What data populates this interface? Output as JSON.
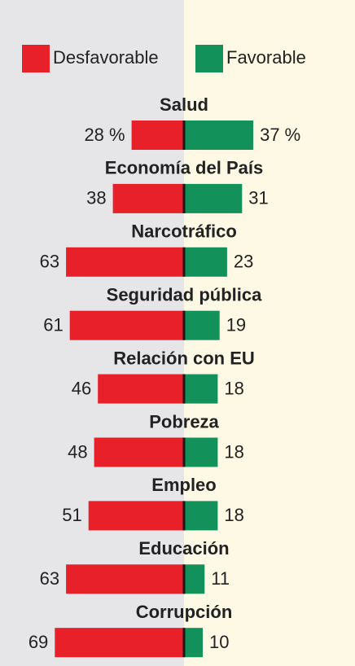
{
  "chart_data": {
    "type": "bar",
    "orientation": "horizontal",
    "layout": "diverging",
    "categories": [
      "Salud",
      "Economía del País",
      "Narcotráfico",
      "Seguridad pública",
      "Relación con EU",
      "Pobreza",
      "Empleo",
      "Educación",
      "Corrupción"
    ],
    "series": [
      {
        "name": "Desfavorable",
        "color": "#e8202a",
        "side": "left",
        "values": [
          28,
          38,
          63,
          61,
          46,
          48,
          51,
          63,
          69
        ],
        "value_labels": [
          "28 %",
          "38",
          "63",
          "61",
          "46",
          "48",
          "51",
          "63",
          "69"
        ]
      },
      {
        "name": "Favorable",
        "color": "#13915a",
        "side": "right",
        "values": [
          37,
          31,
          23,
          19,
          18,
          18,
          18,
          11,
          10
        ],
        "value_labels": [
          "37 %",
          "31",
          "23",
          "19",
          "18",
          "18",
          "18",
          "11",
          "10"
        ]
      }
    ],
    "legend": "top"
  }
}
